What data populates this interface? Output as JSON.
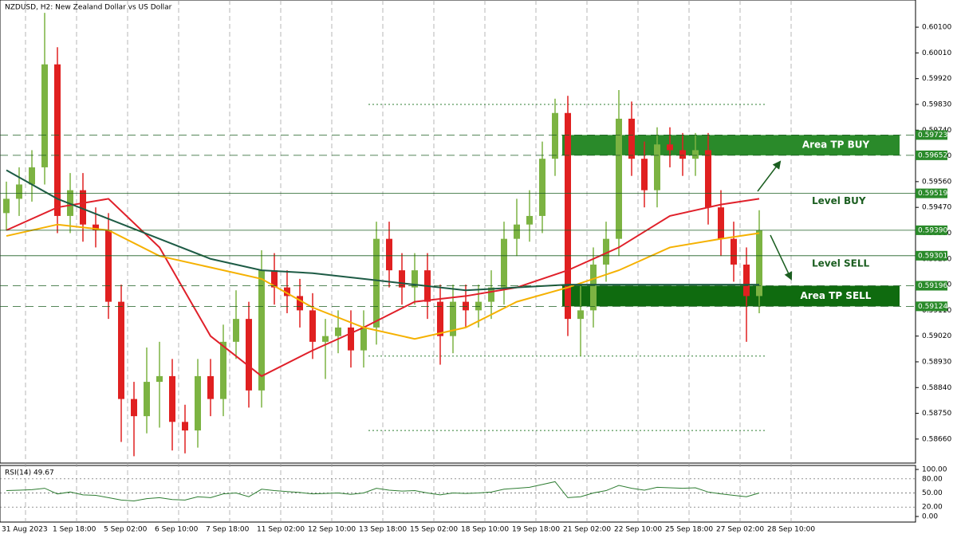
{
  "chart_data": {
    "type": "candlestick",
    "title": "NZDUSD, H2:  New Zealand Dollar vs US Dollar",
    "categories": [
      "31 Aug 2023",
      "1 Sep 18:00",
      "5 Sep 02:00",
      "6 Sep 10:00",
      "7 Sep 18:00",
      "11 Sep 02:00",
      "12 Sep 10:00",
      "13 Sep 18:00",
      "15 Sep 02:00",
      "18 Sep 10:00",
      "19 Sep 18:00",
      "21 Sep 02:00",
      "22 Sep 10:00",
      "25 Sep 18:00",
      "27 Sep 02:00",
      "28 Sep 10:00"
    ],
    "up_color": "#7cb342",
    "down_color": "#e02020",
    "open": [
      0.5945,
      0.595,
      0.5955,
      0.5961,
      0.5997,
      0.5944,
      0.5953,
      0.5941,
      0.5939,
      0.5914,
      0.588,
      0.5874,
      0.5886,
      0.5888,
      0.5872,
      0.5869,
      0.5888,
      0.588,
      0.59,
      0.5908,
      0.5883,
      0.5925,
      0.5919,
      0.5916,
      0.5911,
      0.59,
      0.5902,
      0.5905,
      0.5897,
      0.5905,
      0.5936,
      0.5925,
      0.5919,
      0.5925,
      0.5914,
      0.5902,
      0.5914,
      0.5911,
      0.5914,
      0.5919,
      0.5936,
      0.5941,
      0.5944,
      0.5964,
      0.598,
      0.5908,
      0.5911,
      0.5927,
      0.5936,
      0.5978,
      0.5964,
      0.5953,
      0.5969,
      0.5967,
      0.5964,
      0.5967,
      0.5947,
      0.5936,
      0.5927,
      0.5916
    ],
    "high": [
      0.5956,
      0.5961,
      0.5967,
      0.6015,
      0.6003,
      0.5959,
      0.5959,
      0.5947,
      0.5945,
      0.592,
      0.5886,
      0.5898,
      0.59,
      0.5894,
      0.5878,
      0.5894,
      0.5894,
      0.5906,
      0.5918,
      0.5914,
      0.5932,
      0.5931,
      0.5925,
      0.5922,
      0.5917,
      0.5908,
      0.5911,
      0.5911,
      0.5911,
      0.5942,
      0.5942,
      0.5931,
      0.5931,
      0.5931,
      0.592,
      0.592,
      0.592,
      0.592,
      0.5925,
      0.5942,
      0.595,
      0.5953,
      0.597,
      0.5985,
      0.5986,
      0.592,
      0.5933,
      0.5942,
      0.5988,
      0.5984,
      0.597,
      0.5975,
      0.5975,
      0.5973,
      0.5973,
      0.5973,
      0.5953,
      0.5942,
      0.5933,
      0.5946
    ],
    "low": [
      0.5939,
      0.5944,
      0.5949,
      0.5955,
      0.5938,
      0.5938,
      0.5935,
      0.5933,
      0.5908,
      0.5865,
      0.586,
      0.5868,
      0.587,
      0.5862,
      0.5861,
      0.5863,
      0.5874,
      0.5874,
      0.5894,
      0.5877,
      0.5877,
      0.5913,
      0.591,
      0.5905,
      0.5894,
      0.5887,
      0.5896,
      0.5891,
      0.5891,
      0.5899,
      0.5919,
      0.5913,
      0.5913,
      0.5908,
      0.5892,
      0.5896,
      0.5905,
      0.5905,
      0.5908,
      0.5913,
      0.593,
      0.5935,
      0.5938,
      0.5958,
      0.5902,
      0.5895,
      0.5905,
      0.5921,
      0.593,
      0.5958,
      0.5947,
      0.5947,
      0.5961,
      0.5958,
      0.5958,
      0.5941,
      0.593,
      0.5921,
      0.59,
      0.591
    ],
    "close": [
      0.595,
      0.5955,
      0.5961,
      0.5997,
      0.5944,
      0.5953,
      0.5941,
      0.5939,
      0.5914,
      0.588,
      0.5874,
      0.5886,
      0.5888,
      0.5872,
      0.5869,
      0.5888,
      0.588,
      0.59,
      0.5908,
      0.5883,
      0.5925,
      0.5919,
      0.5916,
      0.5911,
      0.59,
      0.5902,
      0.5905,
      0.5897,
      0.5905,
      0.5936,
      0.5925,
      0.5919,
      0.5925,
      0.5914,
      0.5902,
      0.5914,
      0.5911,
      0.5914,
      0.5919,
      0.5936,
      0.5941,
      0.5944,
      0.5964,
      0.598,
      0.5908,
      0.5911,
      0.5927,
      0.5936,
      0.5978,
      0.5964,
      0.5953,
      0.5969,
      0.5967,
      0.5964,
      0.5967,
      0.5947,
      0.5936,
      0.5927,
      0.5916,
      0.5939
    ],
    "moving_averages": [
      {
        "color": "#e0202a",
        "x": [
          0,
          4,
          8,
          12,
          16,
          20,
          24,
          28,
          32,
          36,
          40,
          44,
          48,
          52,
          56,
          59
        ],
        "values": [
          0.5939,
          0.5947,
          0.595,
          0.5933,
          0.5902,
          0.5888,
          0.5897,
          0.5905,
          0.5914,
          0.5916,
          0.5919,
          0.5925,
          0.5933,
          0.5944,
          0.5948,
          0.595
        ]
      },
      {
        "color": "#f5b100",
        "x": [
          0,
          4,
          8,
          12,
          16,
          20,
          24,
          28,
          32,
          36,
          40,
          44,
          48,
          52,
          56,
          59
        ],
        "values": [
          0.5937,
          0.5941,
          0.5939,
          0.593,
          0.5926,
          0.5922,
          0.5912,
          0.5905,
          0.5901,
          0.5905,
          0.5914,
          0.5919,
          0.5925,
          0.5933,
          0.5936,
          0.5938
        ]
      },
      {
        "color": "#1d5b45",
        "x": [
          0,
          4,
          8,
          12,
          16,
          20,
          24,
          28,
          32,
          36,
          40,
          44,
          48,
          52,
          56,
          59
        ],
        "values": [
          0.596,
          0.595,
          0.5943,
          0.5936,
          0.5929,
          0.5925,
          0.5924,
          0.5922,
          0.592,
          0.5918,
          0.5919,
          0.592,
          0.592,
          0.592,
          0.592,
          0.592
        ]
      }
    ],
    "ylim": [
      0.58576,
      0.60195
    ],
    "yticks": [
      {
        "value": 0.601,
        "label": "0.60100"
      },
      {
        "value": 0.6001,
        "label": "0.60010"
      },
      {
        "value": 0.5992,
        "label": "0.59920"
      },
      {
        "value": 0.5983,
        "label": "0.59830"
      },
      {
        "value": 0.5974,
        "label": "0.59740"
      },
      {
        "value": 0.5965,
        "label": "0.59650"
      },
      {
        "value": 0.5956,
        "label": "0.59560"
      },
      {
        "value": 0.5947,
        "label": "0.59470"
      },
      {
        "value": 0.5938,
        "label": "0.59380"
      },
      {
        "value": 0.5929,
        "label": "0.59290"
      },
      {
        "value": 0.592,
        "label": "0.59200"
      },
      {
        "value": 0.5911,
        "label": "0.59110"
      },
      {
        "value": 0.5902,
        "label": "0.59020"
      },
      {
        "value": 0.5893,
        "label": "0.58930"
      },
      {
        "value": 0.5884,
        "label": "0.58840"
      },
      {
        "value": 0.5875,
        "label": "0.58750"
      },
      {
        "value": 0.5866,
        "label": "0.58660"
      }
    ],
    "levels": [
      {
        "value": 0.59723,
        "label": "0.59723",
        "style": "dashed"
      },
      {
        "value": 0.59652,
        "label": "0.59652",
        "style": "dashed"
      },
      {
        "value": 0.59519,
        "label": "0.59519",
        "style": "solid"
      },
      {
        "value": 0.5939,
        "label": "0.59390",
        "style": "solid"
      },
      {
        "value": 0.59301,
        "label": "0.59301",
        "style": "solid"
      },
      {
        "value": 0.59196,
        "label": "0.59196",
        "style": "dashed"
      },
      {
        "value": 0.59124,
        "label": "0.59124",
        "style": "dashed"
      }
    ],
    "dotted_levels": [
      0.5983,
      0.5895,
      0.5869
    ],
    "zones": [
      {
        "label": "Area TP BUY",
        "top": 0.59723,
        "bottom": 0.59652,
        "color": "#2a8a2a"
      },
      {
        "label": "Area TP SELL",
        "top": 0.59196,
        "bottom": 0.59124,
        "color": "#0f6b0f"
      }
    ],
    "level_labels": [
      {
        "label": "Level BUY",
        "value": 0.59519
      },
      {
        "label": "Level SELL",
        "value": 0.59301
      }
    ],
    "rsi": {
      "label": "RSI(14) 49.67",
      "color": "#2e7d32",
      "values": [
        55,
        56,
        57,
        60,
        48,
        52,
        46,
        45,
        40,
        35,
        33,
        38,
        40,
        36,
        35,
        42,
        40,
        48,
        50,
        42,
        58,
        55,
        53,
        51,
        48,
        49,
        50,
        47,
        50,
        60,
        56,
        54,
        55,
        50,
        46,
        50,
        49,
        50,
        52,
        58,
        60,
        62,
        68,
        74,
        40,
        42,
        50,
        55,
        66,
        60,
        56,
        62,
        61,
        60,
        61,
        52,
        48,
        45,
        42,
        50
      ],
      "ylim": [
        0,
        100
      ],
      "yticks": [
        {
          "value": 100,
          "label": "100.00"
        },
        {
          "value": 80,
          "label": "80.00"
        },
        {
          "value": 50,
          "label": "50.00"
        },
        {
          "value": 20,
          "label": "20.00"
        },
        {
          "value": 0,
          "label": "0.00"
        }
      ]
    }
  }
}
